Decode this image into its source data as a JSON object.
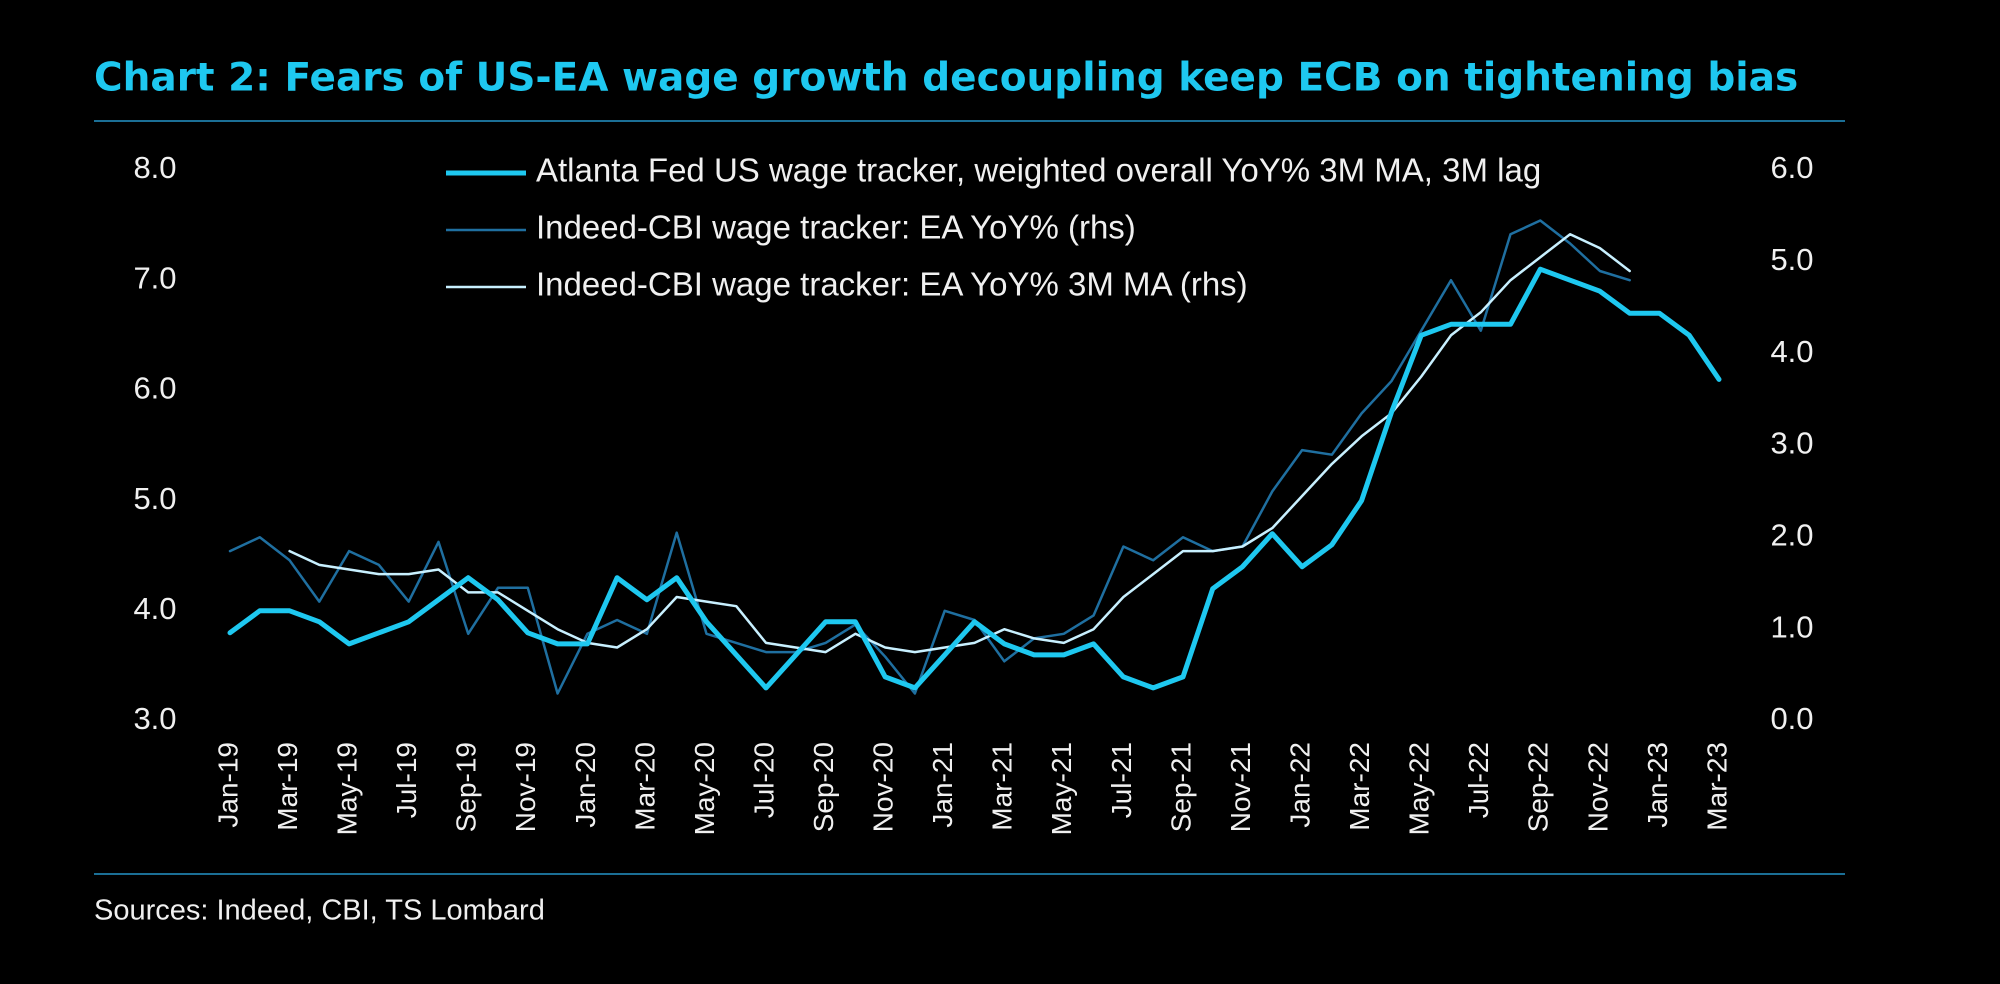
{
  "chart_data": {
    "type": "line",
    "title": "Chart 2: Fears of US-EA wage growth decoupling keep ECB on tightening bias",
    "source": "Sources: Indeed, CBI, TS Lombard",
    "categories": [
      "Jan-19",
      null,
      "Mar-19",
      null,
      "May-19",
      null,
      "Jul-19",
      null,
      "Sep-19",
      null,
      "Nov-19",
      null,
      "Jan-20",
      null,
      "Mar-20",
      null,
      "May-20",
      null,
      "Jul-20",
      null,
      "Sep-20",
      null,
      "Nov-20",
      null,
      "Jan-21",
      null,
      "Mar-21",
      null,
      "May-21",
      null,
      "Jul-21",
      null,
      "Sep-21",
      null,
      "Nov-21",
      null,
      "Jan-22",
      null,
      "Mar-22",
      null,
      "May-22",
      null,
      "Jul-22",
      null,
      "Sep-22",
      null,
      "Nov-22",
      null,
      "Jan-23",
      null,
      "Mar-23"
    ],
    "ylim": [
      3,
      8
    ],
    "yticks": [
      {
        "value": 3,
        "label": "3.0"
      },
      {
        "value": 4,
        "label": "4.0"
      },
      {
        "value": 5,
        "label": "5.0"
      },
      {
        "value": 6,
        "label": "6.0"
      },
      {
        "value": 7,
        "label": "7.0"
      },
      {
        "value": 8,
        "label": "8.0"
      }
    ],
    "y2lim": [
      0,
      6
    ],
    "y2ticks": [
      {
        "value": 0,
        "label": "0.0"
      },
      {
        "value": 1,
        "label": "1.0"
      },
      {
        "value": 2,
        "label": "2.0"
      },
      {
        "value": 3,
        "label": "3.0"
      },
      {
        "value": 4,
        "label": "4.0"
      },
      {
        "value": 5,
        "label": "5.0"
      },
      {
        "value": 6,
        "label": "6.0"
      }
    ],
    "grid": false,
    "legend": "top",
    "series": [
      {
        "name": "Atlanta Fed US wage tracker, weighted overall YoY% 3M MA, 3M lag",
        "color": "#1ec8f0",
        "line_width": 5,
        "values": [
          3.8,
          4.0,
          4.0,
          3.9,
          3.7,
          3.8,
          3.9,
          4.1,
          4.3,
          4.1,
          3.8,
          3.7,
          3.7,
          4.3,
          4.1,
          4.3,
          3.9,
          3.6,
          3.3,
          3.6,
          3.9,
          3.9,
          3.4,
          3.3,
          3.6,
          3.9,
          3.7,
          3.6,
          3.6,
          3.7,
          3.4,
          3.3,
          3.4,
          4.2,
          4.4,
          4.7,
          4.4,
          4.6,
          5.0,
          5.8,
          6.5,
          6.6,
          6.6,
          6.6,
          7.1,
          7.0,
          6.9,
          6.7,
          6.7,
          6.5,
          6.1
        ]
      },
      {
        "name": "Indeed-CBI wage tracker: EA YoY% (rhs)",
        "color": "#1f6fa0",
        "line_width": 2.5,
        "axis": "y2",
        "values": [
          1.85,
          2.0,
          1.75,
          1.3,
          1.85,
          1.7,
          1.3,
          1.95,
          0.95,
          1.45,
          1.45,
          0.3,
          0.95,
          1.1,
          0.95,
          2.05,
          0.95,
          0.85,
          0.75,
          0.75,
          0.85,
          1.05,
          0.7,
          0.3,
          1.2,
          1.1,
          0.65,
          0.9,
          0.95,
          1.15,
          1.9,
          1.75,
          2.0,
          1.85,
          1.9,
          2.5,
          2.95,
          2.9,
          3.35,
          3.7,
          4.25,
          4.8,
          4.25,
          5.3,
          5.45,
          5.2,
          4.9,
          4.8,
          null,
          null,
          null
        ]
      },
      {
        "name": "Indeed-CBI wage tracker: EA YoY% 3M MA (rhs)",
        "color": "#c8f0ff",
        "line_width": 2.5,
        "axis": "y2",
        "values": [
          null,
          null,
          1.85,
          1.7,
          1.65,
          1.6,
          1.6,
          1.65,
          1.4,
          1.4,
          1.2,
          1.0,
          0.85,
          0.8,
          1.0,
          1.35,
          1.3,
          1.25,
          0.85,
          0.8,
          0.75,
          0.95,
          0.8,
          0.75,
          0.8,
          0.85,
          1.0,
          0.9,
          0.85,
          1.0,
          1.35,
          1.6,
          1.85,
          1.85,
          1.9,
          2.1,
          2.45,
          2.8,
          3.1,
          3.35,
          3.75,
          4.2,
          4.45,
          4.8,
          5.05,
          5.3,
          5.15,
          4.9,
          null,
          null,
          null
        ]
      }
    ]
  }
}
